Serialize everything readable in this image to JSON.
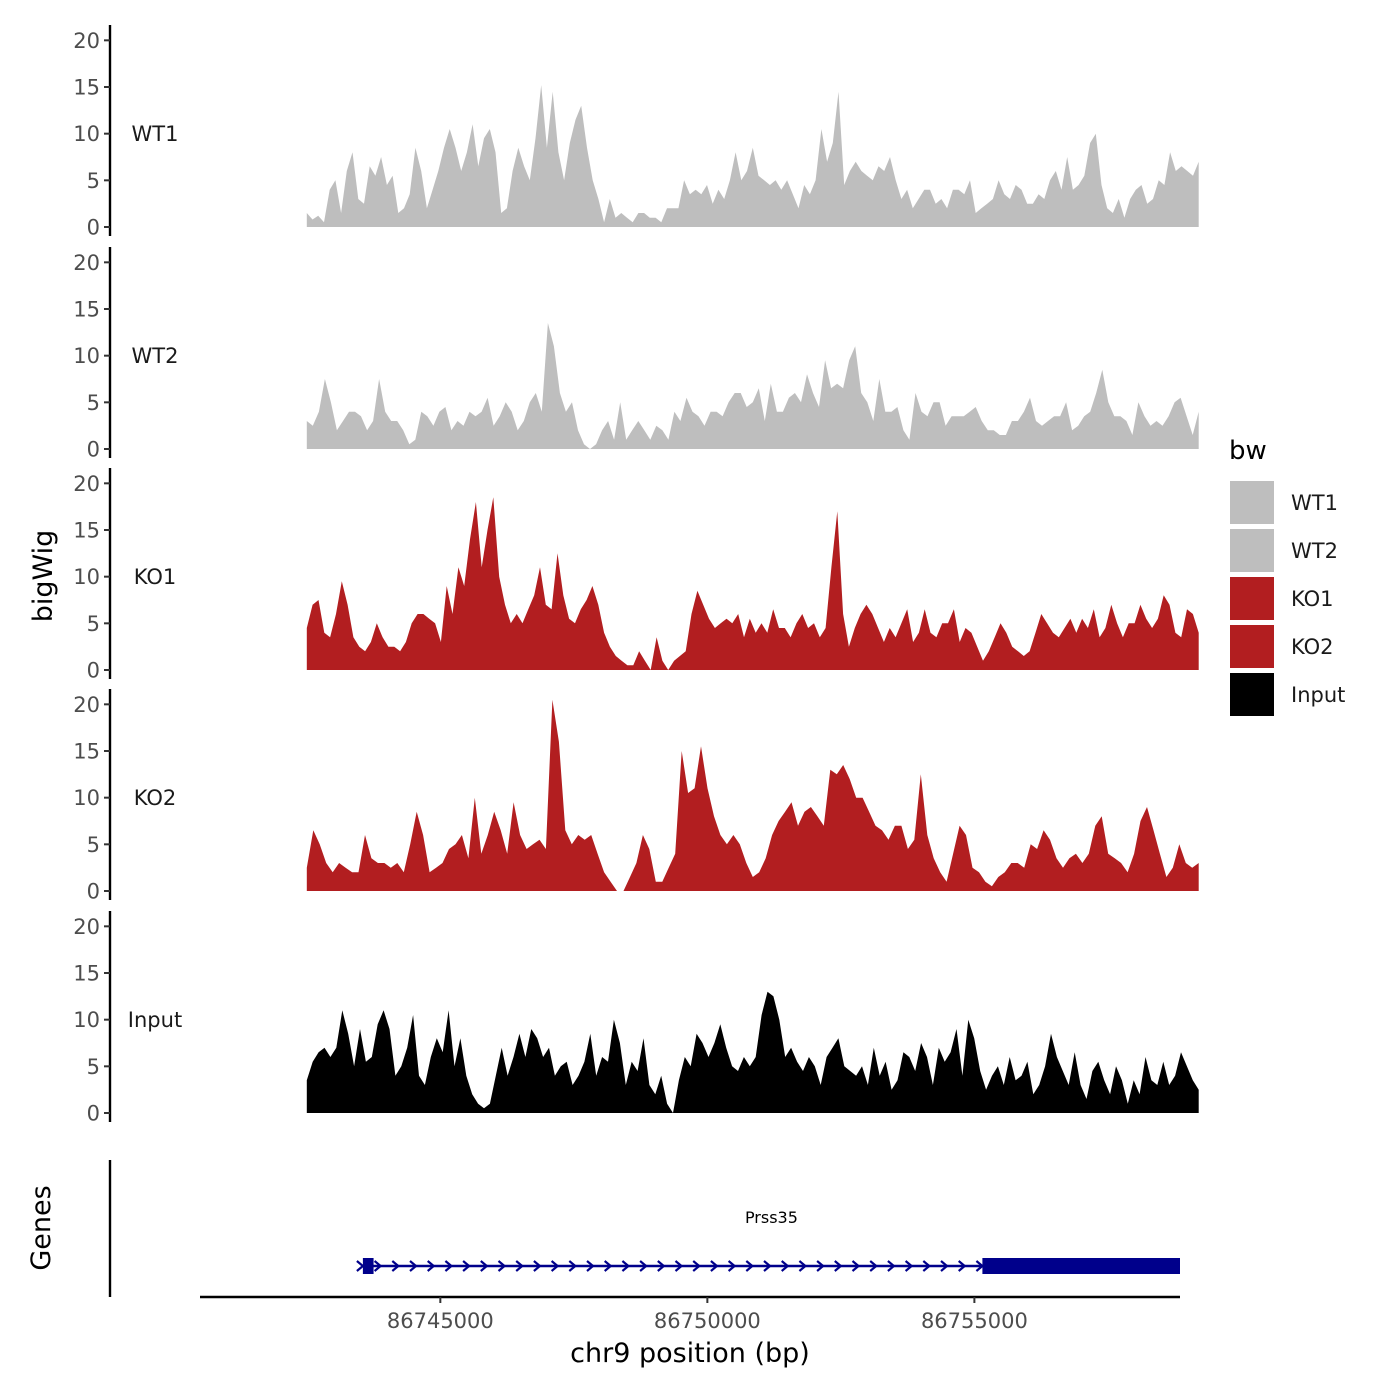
{
  "chart_data": {
    "type": "area",
    "title": "",
    "ylabel": "bigWig",
    "xlabel": "chr9 position (bp)",
    "xlim": [
      86740500,
      86758850
    ],
    "ylim": [
      0,
      21
    ],
    "x_ticks": [
      86745000,
      86750000,
      86755000
    ],
    "x_tick_labels": [
      "86745000",
      "86750000",
      "86755000"
    ],
    "y_ticks": [
      0,
      5,
      10,
      15,
      20
    ],
    "y_tick_labels": [
      "0",
      "5",
      "10",
      "15",
      "20"
    ],
    "legend": {
      "title": "bw",
      "position": "right",
      "entries": [
        {
          "label": "WT1",
          "color": "#bebebe"
        },
        {
          "label": "WT2",
          "color": "#bebebe"
        },
        {
          "label": "KO1",
          "color": "#b21e20"
        },
        {
          "label": "KO2",
          "color": "#b21e20"
        },
        {
          "label": "Input",
          "color": "#000000"
        }
      ]
    },
    "series": [
      {
        "name": "WT1",
        "color": "#bebebe",
        "x_start": 86742500,
        "x_end": 86759200,
        "values": [
          1.5,
          0.8,
          1.2,
          0.5,
          4,
          5,
          1.5,
          6,
          8,
          3,
          2.5,
          6.5,
          5.5,
          7.5,
          4.5,
          5.5,
          1.5,
          2,
          3.5,
          8.5,
          6,
          2,
          4,
          6,
          8.5,
          10.5,
          8.5,
          6,
          8,
          11,
          6.5,
          9.5,
          10.5,
          8,
          1.5,
          2,
          6,
          8.5,
          6.5,
          5,
          9.5,
          15.2,
          8.5,
          14.5,
          8,
          5,
          9,
          11.5,
          13,
          8.5,
          5,
          3,
          0.5,
          3,
          1,
          1.5,
          1,
          0.5,
          1.5,
          1.5,
          1,
          1,
          0.5,
          2,
          2,
          2,
          5,
          3.5,
          4,
          3.5,
          4.5,
          2.5,
          4,
          3,
          5,
          8,
          5,
          6,
          8.5,
          5.5,
          5,
          4.5,
          5,
          4,
          5,
          3.5,
          2,
          4.5,
          3.5,
          5,
          10.5,
          7,
          9,
          14.5,
          4.5,
          6,
          7,
          6,
          5.5,
          5,
          6.5,
          6,
          7.5,
          5,
          3,
          4,
          2,
          3,
          4,
          4,
          2.5,
          3,
          2,
          4,
          4,
          3.5,
          5,
          1.5,
          2,
          2.5,
          3,
          5,
          3.5,
          3,
          4.5,
          4,
          2.5,
          2.5,
          3.5,
          3,
          5,
          6,
          4,
          7.5,
          4,
          4.5,
          5.5,
          9,
          10,
          4.5,
          2,
          1.5,
          3,
          1,
          3,
          4,
          4.5,
          2.5,
          3,
          5,
          4.5,
          8,
          6,
          6.5,
          6,
          5.5,
          7
        ]
      },
      {
        "name": "WT2",
        "color": "#bebebe",
        "x_start": 86742500,
        "x_end": 86759200,
        "values": [
          3,
          2.5,
          4,
          7.5,
          5,
          2,
          3,
          4,
          4,
          3.5,
          2,
          3,
          7.5,
          4,
          3,
          3,
          2,
          0.5,
          1,
          4,
          3.5,
          2.5,
          4,
          4.5,
          2,
          3,
          2.5,
          4,
          3.5,
          4,
          5.5,
          2.5,
          3.5,
          5,
          4,
          2,
          3,
          5,
          6,
          4,
          13.5,
          11,
          6,
          4,
          5,
          2,
          0.5,
          0,
          0.5,
          2,
          3,
          1,
          5,
          1,
          2,
          3,
          2,
          1,
          2.5,
          2,
          1,
          4,
          3,
          5.5,
          4,
          3.5,
          2.5,
          4,
          4,
          3.5,
          5,
          6,
          6,
          4.5,
          5,
          6.5,
          3,
          7,
          4,
          4,
          5.5,
          6,
          5,
          8,
          6,
          4.5,
          9.5,
          6.5,
          7,
          6.5,
          9.5,
          11,
          6,
          5,
          3,
          7.5,
          4,
          4,
          4.5,
          2,
          1,
          6,
          4,
          3.5,
          5,
          5,
          2.5,
          3.5,
          3.5,
          3.5,
          4,
          4.5,
          3,
          2,
          2,
          1.5,
          1.5,
          3,
          3,
          4,
          5.5,
          3,
          2.5,
          3,
          3.5,
          3.5,
          5,
          2,
          2.5,
          3.5,
          4,
          6,
          8.5,
          5,
          3.5,
          3.5,
          3,
          1.5,
          5,
          3.5,
          2.5,
          3,
          2.5,
          3.5,
          5,
          5.5,
          3.5,
          1.5,
          4
        ]
      },
      {
        "name": "KO1",
        "color": "#b21e20",
        "x_start": 86742500,
        "x_end": 86759200,
        "values": [
          4.5,
          7,
          7.5,
          4,
          3.5,
          6,
          9.5,
          7,
          3.5,
          2.5,
          2,
          3,
          5,
          3.5,
          2.5,
          2.5,
          2,
          3,
          5,
          6,
          6,
          5.5,
          5,
          3,
          9,
          6,
          11,
          9,
          14,
          18,
          11,
          15,
          18.5,
          10,
          7,
          5,
          6,
          5,
          6.5,
          8,
          11,
          7,
          6.5,
          12.5,
          8,
          5.5,
          5,
          6.5,
          7.5,
          9,
          7,
          4,
          2.5,
          1.5,
          1,
          0.5,
          0.5,
          2,
          1,
          0,
          3.5,
          1,
          0,
          1,
          1.5,
          2,
          6,
          8.5,
          7,
          5.5,
          4.5,
          5,
          5.5,
          5,
          6,
          3.5,
          5.5,
          4,
          5,
          4,
          6.5,
          4.5,
          4.5,
          3.5,
          5,
          6,
          4.5,
          5,
          3.5,
          4.5,
          11,
          17,
          6,
          2.5,
          4.5,
          6,
          7,
          6,
          4.5,
          3,
          4.5,
          3.5,
          5,
          6.5,
          3,
          4,
          6.5,
          4,
          3.5,
          5,
          5,
          6.5,
          3,
          4.5,
          4,
          2.5,
          1,
          2,
          3.5,
          5,
          4,
          2.5,
          2,
          1.5,
          2,
          4,
          6,
          5,
          4,
          3.5,
          4.5,
          5.5,
          4,
          5.5,
          4.5,
          6.5,
          3.5,
          4.5,
          7,
          5,
          3.5,
          5,
          5,
          7,
          5.5,
          4.5,
          5.5,
          8,
          7,
          4,
          3.5,
          6.5,
          6,
          4
        ]
      },
      {
        "name": "KO2",
        "color": "#b21e20",
        "x_start": 86742500,
        "x_end": 86759200,
        "values": [
          2.5,
          6.5,
          5,
          3,
          2,
          3,
          2.5,
          2,
          2,
          6,
          3.5,
          3,
          3,
          2.5,
          3,
          2,
          5,
          8.5,
          6,
          2,
          2.5,
          3,
          4.5,
          5,
          6,
          3.5,
          10,
          4,
          6,
          8.5,
          6.5,
          4,
          9.5,
          6,
          4.5,
          5,
          5.5,
          4.5,
          20.5,
          16,
          6.5,
          5,
          6,
          5.5,
          6,
          4,
          2,
          1,
          0,
          0,
          1.5,
          3,
          6,
          4.5,
          1,
          1,
          2.5,
          4,
          15,
          10.5,
          11,
          15.5,
          11,
          8,
          6,
          5,
          6,
          5,
          3,
          1.5,
          2,
          3.5,
          6,
          7.5,
          8.5,
          9.5,
          7,
          8.5,
          9,
          8,
          7,
          13,
          12.5,
          13.5,
          12,
          10,
          10,
          8.5,
          7,
          6.5,
          5.5,
          7,
          7,
          4.5,
          5.5,
          12.5,
          6,
          3.5,
          2,
          1,
          4,
          7,
          6,
          2.5,
          2,
          1,
          0.5,
          1.5,
          2,
          3,
          3,
          2.5,
          5,
          4.5,
          6.5,
          5.5,
          3.5,
          2.5,
          3.5,
          4,
          3,
          4,
          7,
          8,
          4,
          3.5,
          3,
          2,
          4,
          7.5,
          9,
          6.5,
          4,
          1.5,
          2.5,
          5,
          3,
          2.5,
          3
        ]
      },
      {
        "name": "Input",
        "color": "#000000",
        "x_start": 86742500,
        "x_end": 86759200,
        "values": [
          3.5,
          5.5,
          6.5,
          7,
          6,
          7,
          11,
          8.5,
          5,
          9,
          5.5,
          6,
          9.5,
          11,
          9,
          4,
          5,
          7,
          10.5,
          4,
          3,
          6,
          8,
          6.5,
          11,
          5,
          8,
          4,
          2,
          1,
          0.5,
          1,
          4,
          7,
          4,
          6,
          8.5,
          6,
          9,
          8,
          6,
          7,
          4,
          5,
          5.5,
          3,
          4,
          5.5,
          8.5,
          4,
          6,
          5.5,
          10,
          7.5,
          3,
          5.5,
          4.5,
          8,
          3,
          2,
          4,
          1,
          0,
          3.5,
          6,
          5,
          8.5,
          7.5,
          6,
          7.5,
          9.5,
          7,
          5,
          4.5,
          6,
          5,
          6,
          10.5,
          13,
          12.5,
          10,
          6,
          7,
          5.5,
          4.5,
          6,
          5,
          3,
          6,
          7,
          8,
          5,
          4.5,
          4,
          5,
          3,
          7,
          4,
          5.5,
          2.5,
          3.5,
          6.5,
          6,
          4.5,
          7.5,
          6,
          3,
          7,
          5.5,
          6.5,
          9,
          4,
          10,
          8,
          4.5,
          2.5,
          4,
          5,
          3,
          6,
          3.5,
          4,
          5.5,
          2,
          3,
          5,
          8.5,
          6,
          4.5,
          3,
          6.5,
          3,
          1.5,
          4.5,
          5.5,
          3.5,
          2,
          5,
          3.5,
          1,
          3.5,
          2,
          6,
          3.5,
          3,
          5.5,
          3,
          4,
          6.5,
          5,
          3.5,
          2.5
        ]
      }
    ],
    "genes": {
      "track_label": "Genes",
      "items": [
        {
          "name": "Prss35",
          "strand": "+",
          "start": 86743550,
          "end": 86758850,
          "exons": [
            [
              86743550,
              86743750
            ],
            [
              86755150,
              86758850
            ]
          ],
          "color": "#00008b"
        }
      ]
    }
  }
}
